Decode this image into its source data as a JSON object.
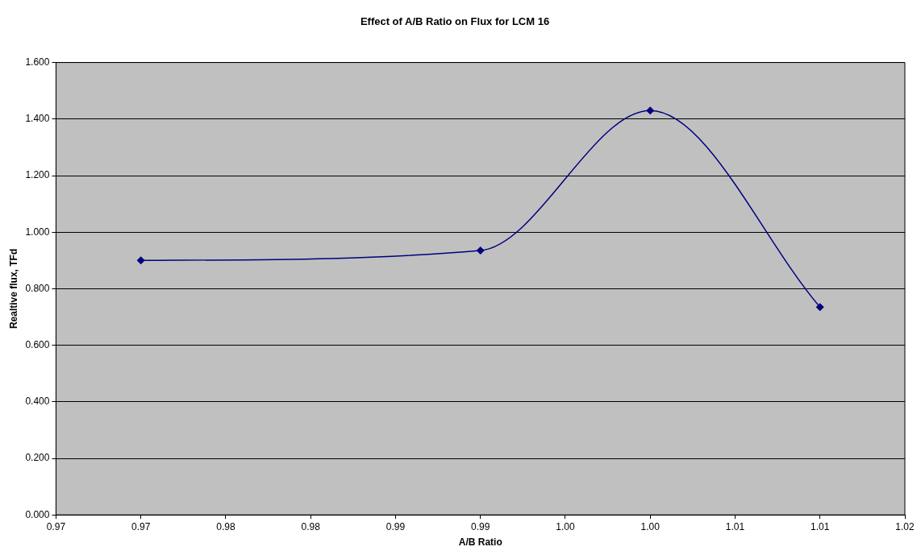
{
  "chart_data": {
    "type": "line",
    "title": "Effect of A/B Ratio on Flux for LCM 16",
    "xlabel": "A/B Ratio",
    "ylabel": "Realtive flux, TFd",
    "x": [
      0.97,
      0.99,
      1.0,
      1.01
    ],
    "series": [
      {
        "color": "#000080",
        "values": [
          0.9,
          0.935,
          1.43,
          0.735
        ]
      }
    ],
    "xlim": [
      0.965,
      1.015
    ],
    "xticks": [
      {
        "value": 0.965,
        "label": "0.97"
      },
      {
        "value": 0.97,
        "label": "0.97"
      },
      {
        "value": 0.975,
        "label": "0.98"
      },
      {
        "value": 0.98,
        "label": "0.98"
      },
      {
        "value": 0.985,
        "label": "0.99"
      },
      {
        "value": 0.99,
        "label": "0.99"
      },
      {
        "value": 0.995,
        "label": "1.00"
      },
      {
        "value": 1.0,
        "label": "1.00"
      },
      {
        "value": 1.005,
        "label": "1.01"
      },
      {
        "value": 1.01,
        "label": "1.01"
      },
      {
        "value": 1.015,
        "label": "1.02"
      }
    ],
    "ylim": [
      0,
      1.6
    ],
    "yticks": [
      {
        "value": 0,
        "label": "0.000"
      },
      {
        "value": 0.2,
        "label": "0.200"
      },
      {
        "value": 0.4,
        "label": "0.400"
      },
      {
        "value": 0.6,
        "label": "0.600"
      },
      {
        "value": 0.8,
        "label": "0.800"
      },
      {
        "value": 1.0,
        "label": "1.000"
      },
      {
        "value": 1.2,
        "label": "1.200"
      },
      {
        "value": 1.4,
        "label": "1.400"
      },
      {
        "value": 1.6,
        "label": "1.600"
      }
    ],
    "grid": "y",
    "legend": false,
    "marker": "diamond",
    "line_style": "solid"
  }
}
